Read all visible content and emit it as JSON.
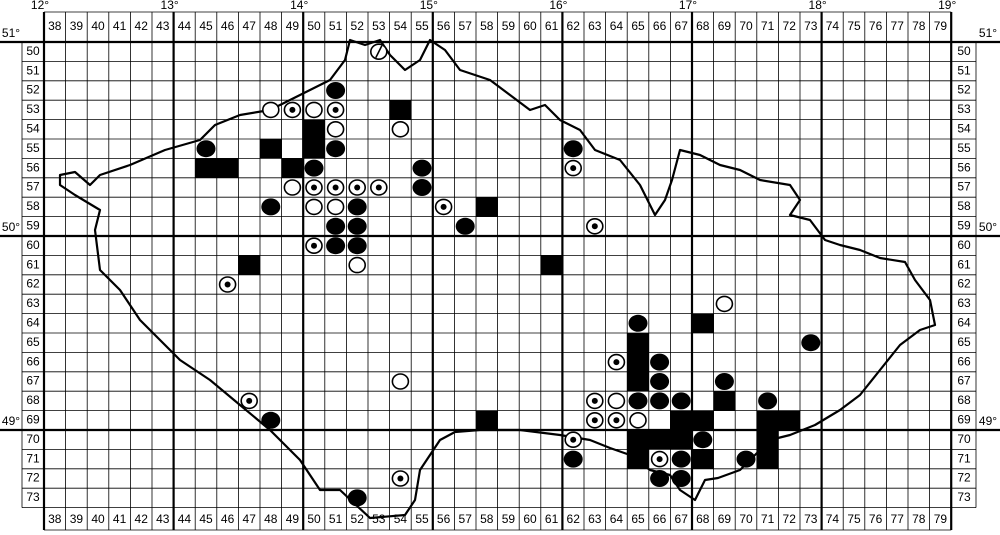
{
  "columns": [
    38,
    39,
    40,
    41,
    42,
    43,
    44,
    45,
    46,
    47,
    48,
    49,
    50,
    51,
    52,
    53,
    54,
    55,
    56,
    57,
    58,
    59,
    60,
    61,
    62,
    63,
    64,
    65,
    66,
    67,
    68,
    69,
    70,
    71,
    72,
    73,
    74,
    75,
    76,
    77,
    78,
    79
  ],
  "rows": [
    50,
    51,
    52,
    53,
    54,
    55,
    56,
    57,
    58,
    59,
    60,
    61,
    62,
    63,
    64,
    65,
    66,
    67,
    68,
    69,
    70,
    71,
    72,
    73
  ],
  "lon_labels": [
    "12°",
    "13°",
    "14°",
    "15°",
    "16°",
    "17°",
    "18°",
    "19°"
  ],
  "lat_labels": [
    "51°",
    "50°",
    "49°"
  ],
  "records": [
    [
      53,
      50,
      "slashed"
    ],
    [
      51,
      52,
      "dot"
    ],
    [
      48,
      53,
      "ring"
    ],
    [
      49,
      53,
      "target"
    ],
    [
      50,
      53,
      "ring"
    ],
    [
      51,
      53,
      "target"
    ],
    [
      54,
      53,
      "square"
    ],
    [
      50,
      54,
      "square"
    ],
    [
      51,
      54,
      "ring"
    ],
    [
      54,
      54,
      "ring"
    ],
    [
      45,
      55,
      "dot"
    ],
    [
      48,
      55,
      "square"
    ],
    [
      50,
      55,
      "square"
    ],
    [
      51,
      55,
      "dot"
    ],
    [
      62,
      55,
      "dot"
    ],
    [
      45,
      56,
      "square"
    ],
    [
      46,
      56,
      "square"
    ],
    [
      49,
      56,
      "square"
    ],
    [
      50,
      56,
      "dot"
    ],
    [
      55,
      56,
      "dot"
    ],
    [
      62,
      56,
      "target"
    ],
    [
      49,
      57,
      "ring"
    ],
    [
      50,
      57,
      "target"
    ],
    [
      51,
      57,
      "target"
    ],
    [
      52,
      57,
      "target"
    ],
    [
      53,
      57,
      "target"
    ],
    [
      55,
      57,
      "dot"
    ],
    [
      48,
      58,
      "dot"
    ],
    [
      50,
      58,
      "ring"
    ],
    [
      51,
      58,
      "ring"
    ],
    [
      52,
      58,
      "dot"
    ],
    [
      56,
      58,
      "target"
    ],
    [
      58,
      58,
      "square"
    ],
    [
      51,
      59,
      "dot"
    ],
    [
      52,
      59,
      "dot"
    ],
    [
      57,
      59,
      "dot"
    ],
    [
      63,
      59,
      "target"
    ],
    [
      50,
      60,
      "target"
    ],
    [
      51,
      60,
      "dot"
    ],
    [
      52,
      60,
      "dot"
    ],
    [
      47,
      61,
      "square"
    ],
    [
      52,
      61,
      "ring"
    ],
    [
      61,
      61,
      "square"
    ],
    [
      46,
      62,
      "target"
    ],
    [
      69,
      63,
      "ring"
    ],
    [
      65,
      64,
      "dot"
    ],
    [
      68,
      64,
      "square"
    ],
    [
      65,
      65,
      "square"
    ],
    [
      73,
      65,
      "dot"
    ],
    [
      64,
      66,
      "target"
    ],
    [
      65,
      66,
      "square"
    ],
    [
      66,
      66,
      "dot"
    ],
    [
      54,
      67,
      "ring"
    ],
    [
      65,
      67,
      "square"
    ],
    [
      66,
      67,
      "dot"
    ],
    [
      69,
      67,
      "dot"
    ],
    [
      47,
      68,
      "target"
    ],
    [
      63,
      68,
      "target"
    ],
    [
      64,
      68,
      "ring"
    ],
    [
      65,
      68,
      "dot"
    ],
    [
      66,
      68,
      "dot"
    ],
    [
      67,
      68,
      "dot"
    ],
    [
      69,
      68,
      "square"
    ],
    [
      71,
      68,
      "dot"
    ],
    [
      48,
      69,
      "dot"
    ],
    [
      58,
      69,
      "square"
    ],
    [
      63,
      69,
      "target"
    ],
    [
      64,
      69,
      "target"
    ],
    [
      65,
      69,
      "ring"
    ],
    [
      67,
      69,
      "square"
    ],
    [
      68,
      69,
      "square"
    ],
    [
      71,
      69,
      "square"
    ],
    [
      72,
      69,
      "square"
    ],
    [
      62,
      70,
      "target"
    ],
    [
      65,
      70,
      "square"
    ],
    [
      66,
      70,
      "square"
    ],
    [
      67,
      70,
      "square"
    ],
    [
      68,
      70,
      "dot"
    ],
    [
      71,
      70,
      "square"
    ],
    [
      62,
      71,
      "dot"
    ],
    [
      65,
      71,
      "square"
    ],
    [
      66,
      71,
      "target"
    ],
    [
      67,
      71,
      "dot"
    ],
    [
      68,
      71,
      "square"
    ],
    [
      70,
      71,
      "dot"
    ],
    [
      71,
      71,
      "square"
    ],
    [
      54,
      72,
      "target"
    ],
    [
      66,
      72,
      "dot"
    ],
    [
      67,
      72,
      "dot"
    ],
    [
      52,
      73,
      "dot"
    ]
  ]
}
